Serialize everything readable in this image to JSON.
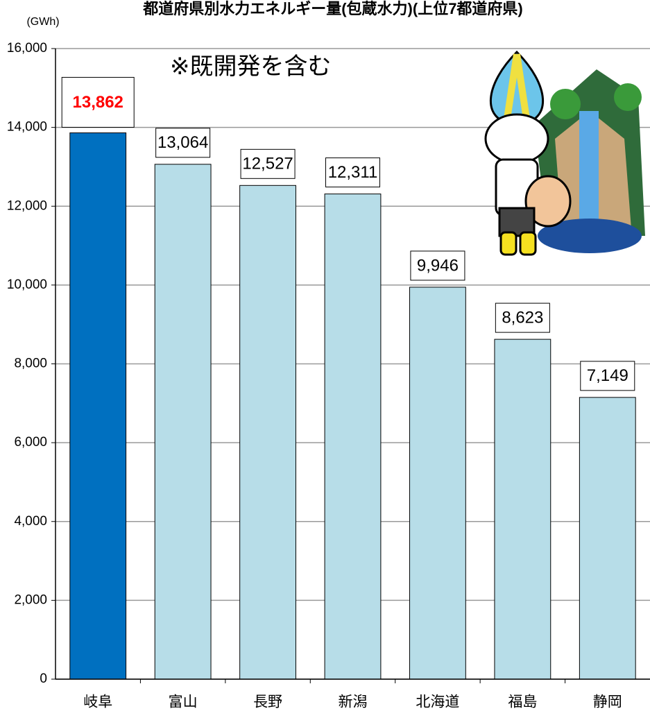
{
  "chart_data": {
    "type": "bar",
    "title": "都道府県別水力エネルギー量(包蔵水力)(上位7都道府県)",
    "y_label": "(GWh)",
    "annotation": "※既開発を含む",
    "categories": [
      "岐阜",
      "富山",
      "長野",
      "新潟",
      "北海道",
      "福島",
      "静岡"
    ],
    "values": [
      13862,
      13064,
      12527,
      12311,
      9946,
      8623,
      7149
    ],
    "value_labels": [
      "13,862",
      "13,064",
      "12,527",
      "12,311",
      "9,946",
      "8,623",
      "7,149"
    ],
    "colors": [
      "#0070c0",
      "#b7dde8",
      "#b7dde8",
      "#b7dde8",
      "#b7dde8",
      "#b7dde8",
      "#b7dde8"
    ],
    "ylim": [
      0,
      16000
    ],
    "yticks": [
      0,
      {
        "value": 2000,
        "label": "2,000"
      },
      {
        "value": 4000,
        "label": "4,000"
      },
      {
        "value": 6000,
        "label": "6,000"
      },
      {
        "value": 8000,
        "label": "8,000"
      },
      {
        "value": 10000,
        "label": "10,000"
      },
      {
        "value": 12000,
        "label": "12,000"
      },
      {
        "value": 14000,
        "label": "14,000"
      },
      {
        "value": 16000,
        "label": "16,000"
      }
    ],
    "grid": true
  }
}
